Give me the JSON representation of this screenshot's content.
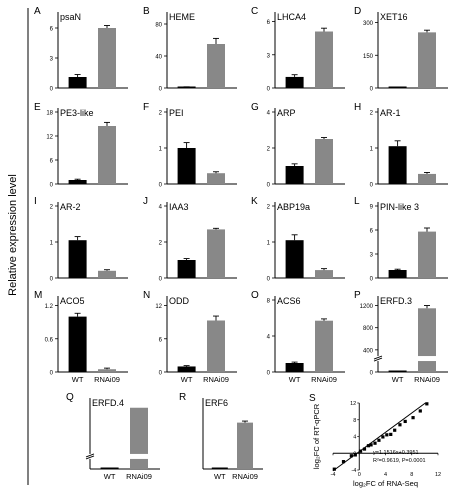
{
  "figure": {
    "ylabel": "Relative expression level",
    "bar_colors": {
      "WT": "#000000",
      "RNAi09": "#888888"
    }
  },
  "chart_data": [
    {
      "panel": "A",
      "type": "bar",
      "title": "psaN",
      "categories": [
        "WT",
        "RNAi09"
      ],
      "values": [
        1.1,
        6.0
      ],
      "errors": [
        0.25,
        0.25
      ],
      "yticks": [
        "0",
        "3",
        "6"
      ],
      "ylim": [
        0,
        7.2
      ],
      "show_xlabels": false
    },
    {
      "panel": "B",
      "type": "bar",
      "title": "HEME",
      "categories": [
        "WT",
        "RNAi09"
      ],
      "values": [
        1.0,
        55
      ],
      "errors": [
        0.5,
        7
      ],
      "yticks": [
        "0",
        "40",
        "80"
      ],
      "ylim": [
        0,
        90
      ],
      "show_xlabels": false
    },
    {
      "panel": "C",
      "type": "bar",
      "title": "LHCA4",
      "categories": [
        "WT",
        "RNAi09"
      ],
      "values": [
        1.0,
        5.1
      ],
      "errors": [
        0.2,
        0.3
      ],
      "yticks": [
        "0",
        "3",
        "6"
      ],
      "ylim": [
        0,
        6.5
      ],
      "show_xlabels": false
    },
    {
      "panel": "D",
      "type": "bar",
      "title": "XET16",
      "categories": [
        "WT",
        "RNAi09"
      ],
      "values": [
        1.0,
        255
      ],
      "errors": [
        0.5,
        10
      ],
      "yticks": [
        "0",
        "150",
        "300"
      ],
      "ylim": [
        0,
        330
      ],
      "show_xlabels": false
    },
    {
      "panel": "E",
      "type": "bar",
      "title": "PE3-like",
      "categories": [
        "WT",
        "RNAi09"
      ],
      "values": [
        1.0,
        14.5
      ],
      "errors": [
        0.2,
        0.9
      ],
      "yticks": [
        "0",
        "6",
        "12",
        "18"
      ],
      "ylim": [
        0,
        18
      ],
      "show_xlabels": false
    },
    {
      "panel": "F",
      "type": "bar",
      "title": "PEI",
      "categories": [
        "WT",
        "RNAi09"
      ],
      "values": [
        1.0,
        0.3
      ],
      "errors": [
        0.15,
        0.04
      ],
      "yticks": [
        "0",
        "1",
        "2"
      ],
      "ylim": [
        0,
        2
      ],
      "show_xlabels": false
    },
    {
      "panel": "G",
      "type": "bar",
      "title": "ARP",
      "categories": [
        "WT",
        "RNAi09"
      ],
      "values": [
        1.0,
        2.5
      ],
      "errors": [
        0.12,
        0.08
      ],
      "yticks": [
        "0",
        "2",
        "4"
      ],
      "ylim": [
        0,
        4
      ],
      "show_xlabels": false
    },
    {
      "panel": "H",
      "type": "bar",
      "title": "AR-1",
      "categories": [
        "WT",
        "RNAi09"
      ],
      "values": [
        1.05,
        0.28
      ],
      "errors": [
        0.15,
        0.04
      ],
      "yticks": [
        "0",
        "1",
        "2"
      ],
      "ylim": [
        0,
        2
      ],
      "show_xlabels": false
    },
    {
      "panel": "I",
      "type": "bar",
      "title": "AR-2",
      "categories": [
        "WT",
        "RNAi09"
      ],
      "values": [
        1.05,
        0.2
      ],
      "errors": [
        0.1,
        0.03
      ],
      "yticks": [
        "0",
        "1",
        "2"
      ],
      "ylim": [
        0,
        2
      ],
      "show_xlabels": false
    },
    {
      "panel": "J",
      "type": "bar",
      "title": "IAA3",
      "categories": [
        "WT",
        "RNAi09"
      ],
      "values": [
        1.0,
        2.7
      ],
      "errors": [
        0.08,
        0.06
      ],
      "yticks": [
        "0",
        "2",
        "4"
      ],
      "ylim": [
        0,
        4
      ],
      "show_xlabels": false
    },
    {
      "panel": "K",
      "type": "bar",
      "title": "ABP19a",
      "categories": [
        "WT",
        "RNAi09"
      ],
      "values": [
        1.05,
        0.22
      ],
      "errors": [
        0.15,
        0.04
      ],
      "yticks": [
        "0",
        "1",
        "2"
      ],
      "ylim": [
        0,
        2
      ],
      "show_xlabels": false
    },
    {
      "panel": "L",
      "type": "bar",
      "title": "PIN-like 3",
      "categories": [
        "WT",
        "RNAi09"
      ],
      "values": [
        1.0,
        5.8
      ],
      "errors": [
        0.1,
        0.45
      ],
      "yticks": [
        "0",
        "3",
        "6",
        "9"
      ],
      "ylim": [
        0,
        9
      ],
      "show_xlabels": false
    },
    {
      "panel": "M",
      "type": "bar",
      "title": "ACO5",
      "categories": [
        "WT",
        "RNAi09"
      ],
      "values": [
        1.0,
        0.05
      ],
      "errors": [
        0.06,
        0.02
      ],
      "yticks": [
        "0",
        "0.6",
        "1.2"
      ],
      "ylim": [
        0,
        1.3
      ],
      "show_xlabels": true
    },
    {
      "panel": "N",
      "type": "bar",
      "title": "ODD",
      "categories": [
        "WT",
        "RNAi09"
      ],
      "values": [
        1.0,
        9.3
      ],
      "errors": [
        0.15,
        0.8
      ],
      "yticks": [
        "0",
        "6",
        "12"
      ],
      "ylim": [
        0,
        13
      ],
      "show_xlabels": true
    },
    {
      "panel": "O",
      "type": "bar",
      "title": "ACS6",
      "categories": [
        "WT",
        "RNAi09"
      ],
      "values": [
        1.0,
        5.7
      ],
      "errors": [
        0.1,
        0.2
      ],
      "yticks": [
        "0",
        "4",
        "8"
      ],
      "ylim": [
        0,
        8
      ],
      "show_xlabels": true
    },
    {
      "panel": "P",
      "type": "bar",
      "title": "ERFD.3",
      "categories": [
        "WT",
        "RNAi09"
      ],
      "values": [
        1.0,
        1150
      ],
      "errors": [
        0.5,
        50
      ],
      "yticks": [
        "0",
        "400",
        "800",
        "1200"
      ],
      "ylim": [
        0,
        1300
      ],
      "broken_axis": true,
      "show_xlabels": true
    },
    {
      "panel": "Q",
      "type": "bar",
      "title": "ERFD.4",
      "categories": [
        "WT",
        "RNAi09"
      ],
      "values": [
        1.0,
        1600
      ],
      "errors": [
        0,
        0
      ],
      "yticks": [],
      "ylim": [
        0,
        1750
      ],
      "broken_axis": true,
      "show_xlabels": true
    },
    {
      "panel": "R",
      "type": "bar",
      "title": "ERF6",
      "categories": [
        "WT",
        "RNAi09"
      ],
      "values": [
        1.0,
        90
      ],
      "errors": [
        0.5,
        3
      ],
      "yticks": [],
      "ylim": [
        0,
        130
      ],
      "show_xlabels": true
    },
    {
      "panel": "S",
      "type": "scatter",
      "x": [
        -3.8,
        -2.4,
        -1.2,
        -0.6,
        0.2,
        0.8,
        1.4,
        1.8,
        2.4,
        3.0,
        3.6,
        4.2,
        4.8,
        5.4,
        6.2,
        7.0,
        8.2,
        9.3,
        10.3
      ],
      "y": [
        -3.8,
        -2.0,
        -0.6,
        -0.4,
        0.5,
        1.0,
        1.8,
        2.0,
        2.4,
        3.1,
        3.9,
        4.4,
        4.5,
        5.5,
        6.8,
        7.6,
        8.5,
        10.1,
        11.8
      ],
      "fit": {
        "slope": 1.1516,
        "intercept": 0.3951
      },
      "equation": "y=1.1516x+0.3951",
      "stats": "R²=0.9619, P=0.0001",
      "xlabel": "log₂FC of RNA-Seq",
      "ylabel": "log₂FC of RT-qPCR",
      "xticks": [
        "-4",
        "0",
        "4",
        "8",
        "12"
      ],
      "yticks": [
        "-4",
        "0",
        "4",
        "8",
        "12"
      ],
      "xlim": [
        -4,
        12
      ],
      "ylim": [
        -4,
        12
      ]
    }
  ]
}
